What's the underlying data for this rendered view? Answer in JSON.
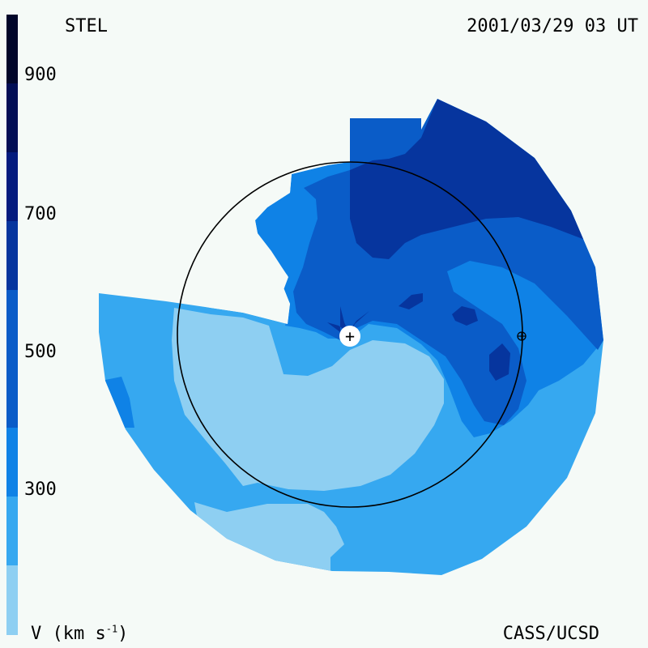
{
  "header": {
    "source": "STEL",
    "datetime": "2001/03/29 03 UT"
  },
  "footer": {
    "unit_label_main": "V (km s",
    "unit_label_exp": "-1",
    "unit_label_end": ")",
    "credit": "CASS/UCSD"
  },
  "colorbar": {
    "ticks": [
      "900",
      "700",
      "500",
      "300"
    ],
    "levels": [
      {
        "range": "200-300",
        "color": "#8ecff2"
      },
      {
        "range": "300-400",
        "color": "#36a8f0"
      },
      {
        "range": "400-500",
        "color": "#0f82e6"
      },
      {
        "range": "500-600",
        "color": "#0a5cc8"
      },
      {
        "range": "600-700",
        "color": "#06359e"
      },
      {
        "range": "700-800",
        "color": "#041b7e"
      },
      {
        "range": "800-900",
        "color": "#020e55"
      },
      {
        "range": "900-1000",
        "color": "#01062a"
      }
    ]
  },
  "map": {
    "sun_marker": "+",
    "earth_marker": "⊕",
    "colors": {
      "v250": "#8ecff2",
      "v350": "#36a8f0",
      "v450": "#0f82e6",
      "v550": "#0a5cc8",
      "v650": "#06359e",
      "orbit": "#000000",
      "background": "#f5faf7"
    }
  }
}
